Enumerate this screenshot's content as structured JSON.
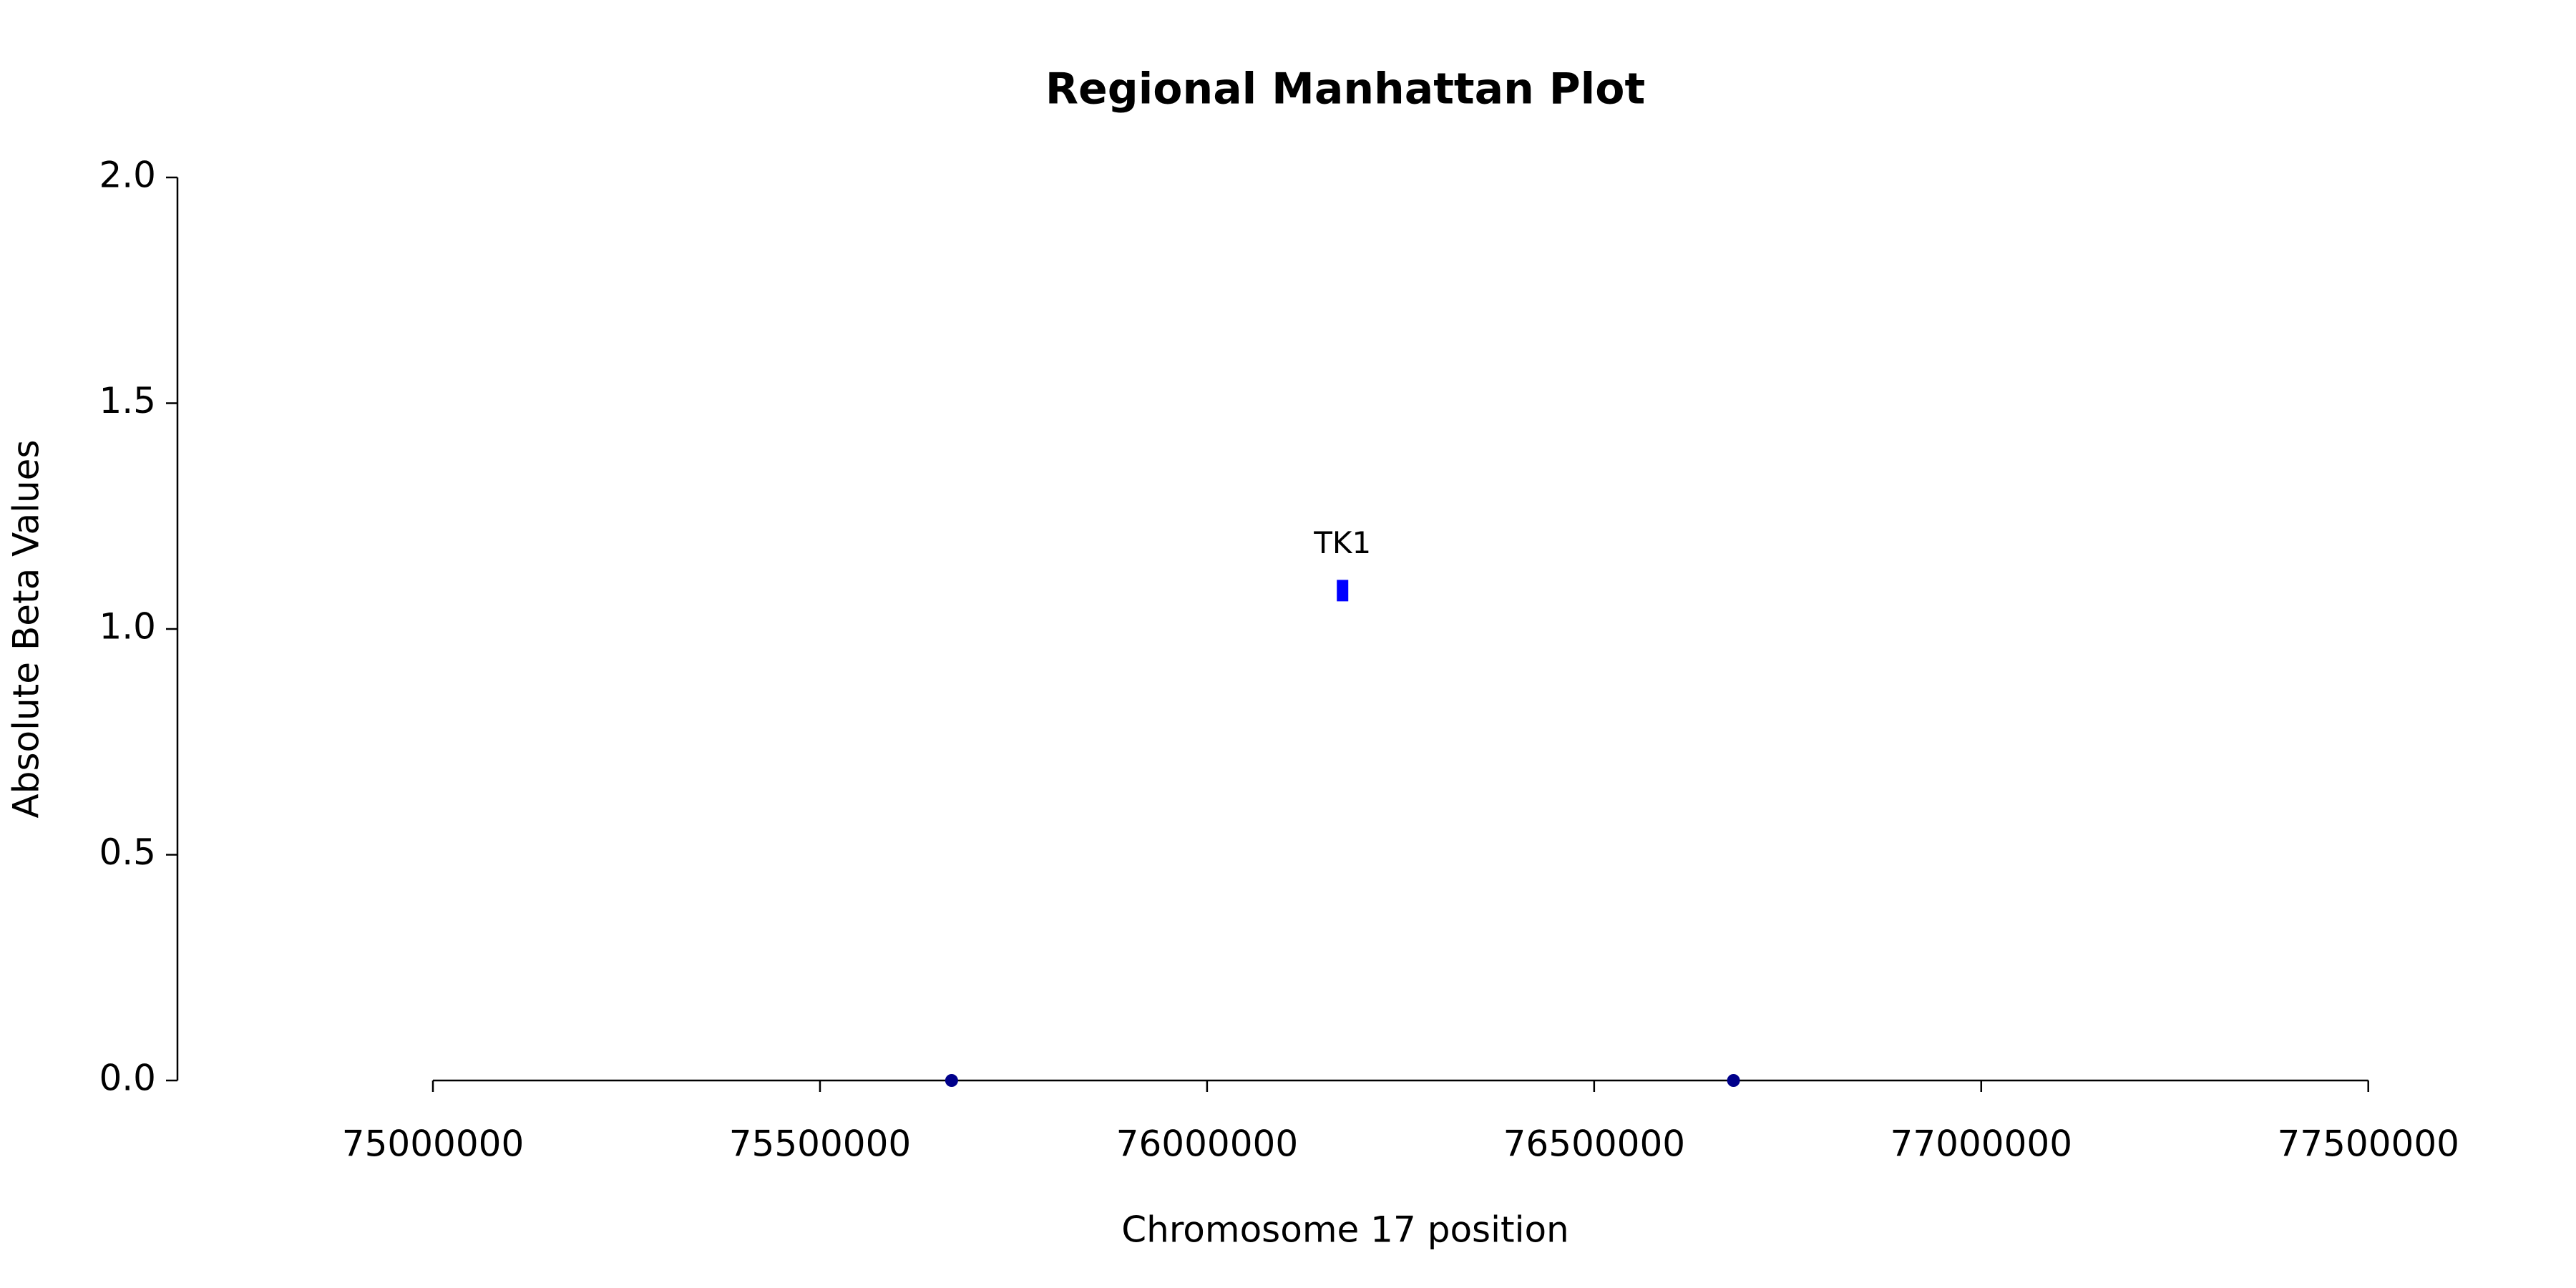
{
  "chart_data": {
    "type": "scatter",
    "title": "Regional Manhattan Plot",
    "x_label": "Chromosome 17 position",
    "y_label": "Absolute Beta Values",
    "x": [
      75670000,
      76175000,
      76680000
    ],
    "values": [
      0,
      1.085,
      0
    ],
    "point_colors": [
      "#00008b",
      "#0000ff",
      "#00008b"
    ],
    "point_shapes": [
      "circle",
      "rect",
      "circle"
    ],
    "point_labels": [
      null,
      "TK1",
      null
    ],
    "xlim": [
      74670000,
      77650000
    ],
    "xticks": [
      75000000,
      75500000,
      76000000,
      76500000,
      77000000,
      77500000
    ],
    "ylim": [
      0,
      2
    ],
    "yticks": [
      {
        "value": 0,
        "label": "0.0"
      },
      0.5,
      {
        "value": 1,
        "label": "1.0"
      },
      1.5,
      {
        "value": 2,
        "label": "2.0"
      }
    ],
    "grid": false
  }
}
